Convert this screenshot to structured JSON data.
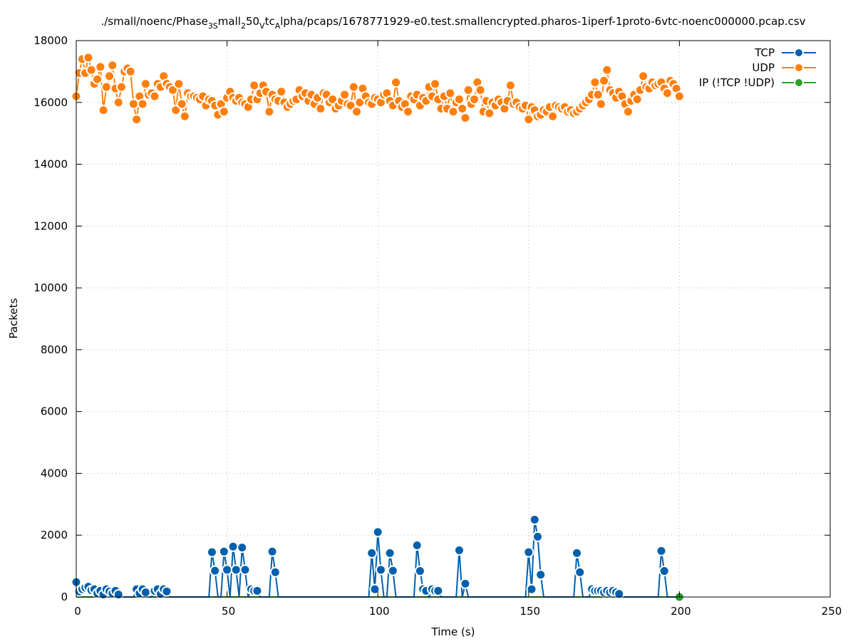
{
  "chart_data": {
    "type": "line",
    "title_parts": {
      "a": "./small/noenc/Phase",
      "b": "3S",
      "c": "mall",
      "d": "2",
      "e": "50",
      "f": "V",
      "g": "tc",
      "h": "A",
      "i": "lpha/pcaps/1678771929-e0.test.smallencrypted.pharos-1iperf-1proto-6vtc-noenc000000.pcap.csv"
    },
    "xlabel": "Time (s)",
    "ylabel": "Packets",
    "xlim": [
      0,
      250
    ],
    "ylim": [
      0,
      18000
    ],
    "xticks": [
      0,
      50,
      100,
      150,
      200,
      250
    ],
    "yticks": [
      0,
      2000,
      4000,
      6000,
      8000,
      10000,
      12000,
      14000,
      16000,
      18000
    ],
    "grid": true,
    "legend_position": "top-right",
    "series": [
      {
        "name": "TCP",
        "color": "#0060ad",
        "start": 0,
        "values": [
          480,
          180,
          250,
          300,
          330,
          220,
          250,
          120,
          200,
          80,
          250,
          180,
          120,
          200,
          80,
          0,
          0,
          0,
          0,
          0,
          250,
          120,
          250,
          150,
          0,
          0,
          200,
          250,
          100,
          250,
          180,
          0,
          0,
          0,
          0,
          0,
          0,
          0,
          0,
          0,
          0,
          0,
          0,
          0,
          0,
          1450,
          850,
          0,
          0,
          1470,
          880,
          0,
          1630,
          880,
          0,
          1600,
          880,
          0,
          250,
          200,
          200,
          0,
          0,
          0,
          0,
          1470,
          800,
          0,
          0,
          0,
          0,
          0,
          0,
          0,
          0,
          0,
          0,
          0,
          0,
          0,
          0,
          0,
          0,
          0,
          0,
          0,
          0,
          0,
          0,
          0,
          0,
          0,
          0,
          0,
          0,
          0,
          0,
          0,
          1420,
          250,
          2100,
          880,
          0,
          0,
          1420,
          850,
          0,
          0,
          0,
          0,
          0,
          0,
          0,
          1670,
          840,
          250,
          200,
          0,
          250,
          200,
          200,
          0,
          0,
          0,
          0,
          0,
          0,
          1510,
          0,
          430,
          0,
          0,
          0,
          0,
          0,
          0,
          0,
          0,
          0,
          0,
          0,
          0,
          0,
          0,
          0,
          0,
          0,
          0,
          0,
          0,
          1450,
          250,
          2500,
          1950,
          720,
          0,
          0,
          0,
          0,
          0,
          0,
          0,
          0,
          0,
          0,
          0,
          1420,
          800,
          0,
          0,
          0,
          250,
          200,
          200,
          200,
          150,
          200,
          150,
          200,
          150,
          100,
          0,
          0,
          0,
          0,
          0,
          0,
          0,
          0,
          0,
          0,
          0,
          0,
          0,
          1490,
          840,
          0,
          0,
          0,
          0
        ]
      },
      {
        "name": "UDP",
        "color": "#ff7f0e",
        "start": 0,
        "values": [
          16200,
          16950,
          17400,
          16950,
          17450,
          17050,
          16600,
          16750,
          17150,
          15750,
          16500,
          16850,
          17200,
          16450,
          16000,
          16500,
          17000,
          17100,
          17000,
          15950,
          15450,
          16200,
          15950,
          16600,
          16250,
          16300,
          16200,
          16600,
          16500,
          16850,
          16600,
          16500,
          16400,
          15750,
          16600,
          15950,
          15550,
          16300,
          16200,
          16200,
          16150,
          16100,
          16200,
          15900,
          16100,
          16050,
          15900,
          15600,
          15950,
          15700,
          16150,
          16350,
          16150,
          16050,
          16150,
          16000,
          15950,
          15850,
          16100,
          16550,
          16100,
          16300,
          16550,
          16350,
          15700,
          16250,
          16100,
          16050,
          16350,
          16000,
          15850,
          15950,
          16050,
          16100,
          16400,
          16200,
          16300,
          16050,
          16250,
          15950,
          16150,
          15800,
          16300,
          16250,
          16000,
          16100,
          15800,
          15900,
          16050,
          16250,
          15950,
          15900,
          16500,
          15700,
          16000,
          16450,
          16200,
          16000,
          15950,
          16150,
          16100,
          16000,
          16250,
          16300,
          16050,
          15900,
          16650,
          16050,
          15850,
          15950,
          15700,
          16200,
          16100,
          16250,
          15900,
          16150,
          16050,
          16500,
          16200,
          16600,
          16100,
          15800,
          16200,
          15800,
          16300,
          15700,
          16000,
          16100,
          15800,
          15500,
          16400,
          15950,
          16100,
          16650,
          16400,
          15700,
          16050,
          15650,
          16000,
          15900,
          16100,
          16000,
          15800,
          16050,
          16550,
          15950,
          16000,
          15850,
          15800,
          15900,
          15450,
          15850,
          15750,
          15550,
          15600,
          15750,
          15700,
          15850,
          15550,
          15900,
          15850,
          15800,
          15850,
          15700,
          15750,
          15650,
          15700,
          15800,
          15900,
          16000,
          16100,
          16250,
          16650,
          16250,
          15950,
          16700,
          17050,
          16400,
          16300,
          16150,
          16350,
          16200,
          15950,
          15700,
          16050,
          16250,
          16100,
          16400,
          16850,
          16500,
          16450,
          16650,
          16550,
          16600,
          16650,
          16450,
          16300,
          16700,
          16600,
          16450,
          16200
        ]
      },
      {
        "name": "IP (!TCP  !UDP)",
        "color": "#2ca02c",
        "start": 0,
        "marker_every_last_only": true,
        "values_constant": 0,
        "count": 201
      }
    ]
  }
}
